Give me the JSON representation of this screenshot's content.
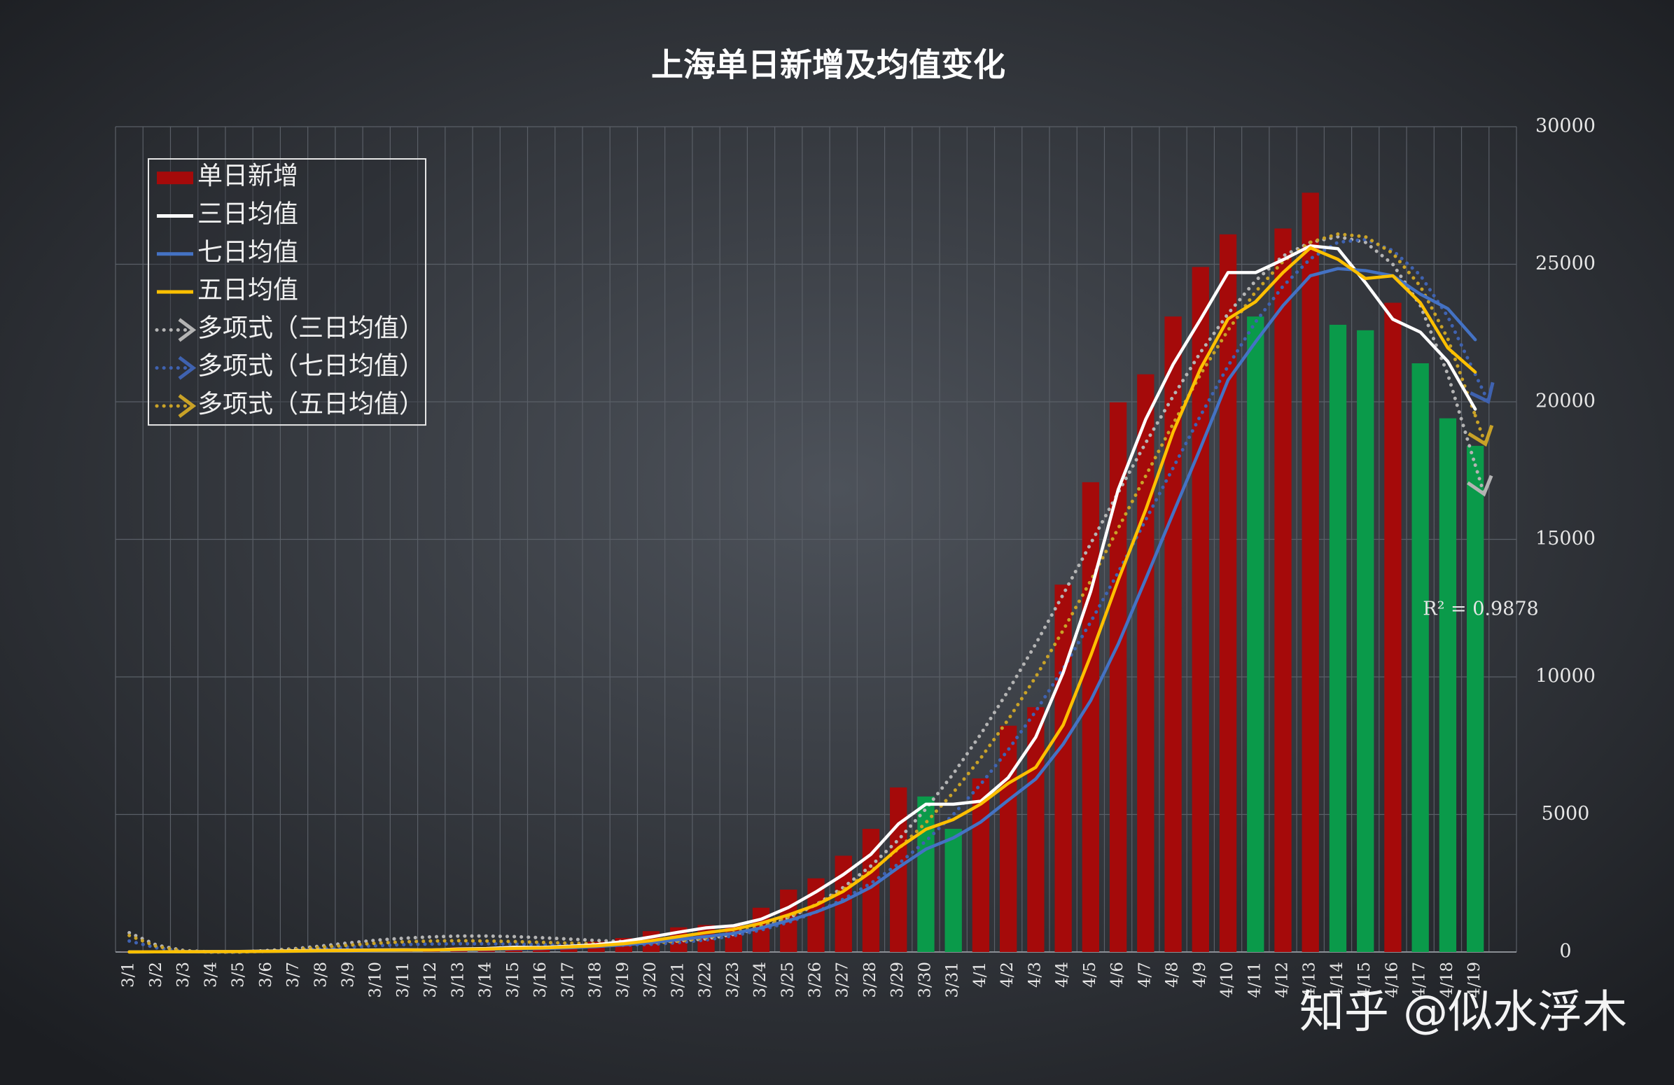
{
  "chart_data": {
    "type": "bar",
    "title": "上海单日新增及均值变化",
    "categories": [
      "3/1",
      "3/2",
      "3/3",
      "3/4",
      "3/5",
      "3/6",
      "3/7",
      "3/8",
      "3/9",
      "3/10",
      "3/11",
      "3/12",
      "3/13",
      "3/14",
      "3/15",
      "3/16",
      "3/17",
      "3/18",
      "3/19",
      "3/20",
      "3/21",
      "3/22",
      "3/23",
      "3/24",
      "3/25",
      "3/26",
      "3/27",
      "3/28",
      "3/29",
      "3/30",
      "3/31",
      "4/1",
      "4/2",
      "4/3",
      "4/4",
      "4/5",
      "4/6",
      "4/7",
      "4/8",
      "4/9",
      "4/10",
      "4/11",
      "4/12",
      "4/13",
      "4/14",
      "4/15",
      "4/16",
      "4/17",
      "4/18",
      "4/19"
    ],
    "series": [
      {
        "name": "单日新增",
        "type": "bar",
        "color": "#a50a0a",
        "values": [
          3,
          8,
          16,
          19,
          28,
          45,
          55,
          65,
          79,
          75,
          83,
          65,
          169,
          139,
          202,
          158,
          260,
          374,
          509,
          758,
          896,
          981,
          983,
          1609,
          2269,
          2678,
          3500,
          4477,
          5982,
          5653,
          4477,
          6311,
          8226,
          8900,
          13354,
          17077,
          19982,
          21000,
          23100,
          24900,
          26087,
          23100,
          26300,
          27600,
          22800,
          22600,
          23600,
          21400,
          19400,
          18400
        ],
        "colors": [
          "#a50a0a",
          "#a50a0a",
          "#a50a0a",
          "#a50a0a",
          "#a50a0a",
          "#a50a0a",
          "#a50a0a",
          "#a50a0a",
          "#a50a0a",
          "#a50a0a",
          "#a50a0a",
          "#a50a0a",
          "#a50a0a",
          "#a50a0a",
          "#a50a0a",
          "#a50a0a",
          "#a50a0a",
          "#a50a0a",
          "#a50a0a",
          "#a50a0a",
          "#a50a0a",
          "#a50a0a",
          "#a50a0a",
          "#a50a0a",
          "#a50a0a",
          "#a50a0a",
          "#a50a0a",
          "#a50a0a",
          "#a50a0a",
          "#0a9a4a",
          "#0a9a4a",
          "#a50a0a",
          "#a50a0a",
          "#a50a0a",
          "#a50a0a",
          "#a50a0a",
          "#a50a0a",
          "#a50a0a",
          "#a50a0a",
          "#a50a0a",
          "#a50a0a",
          "#0a9a4a",
          "#a50a0a",
          "#a50a0a",
          "#0a9a4a",
          "#0a9a4a",
          "#a50a0a",
          "#0a9a4a",
          "#0a9a4a",
          "#0a9a4a"
        ]
      },
      {
        "name": "三日均值",
        "type": "line",
        "color": "#ffffff",
        "values": [
          3,
          5.5,
          9,
          14,
          21,
          31,
          43,
          55,
          66,
          73,
          79,
          74,
          106,
          124,
          170,
          166,
          207,
          264,
          381,
          547,
          721,
          878,
          953,
          1191,
          1620,
          2185,
          2816,
          3552,
          4653,
          5371,
          5371,
          5480,
          6338,
          7812,
          10160,
          13110,
          16804,
          19353,
          21361,
          23000,
          24696,
          24696,
          25162,
          25667,
          25567,
          24333,
          23000,
          22533,
          21467,
          19733
        ]
      },
      {
        "name": "七日均值",
        "type": "line",
        "color": "#4472c4",
        "values": [
          3,
          5.5,
          9,
          11.5,
          14.8,
          19.8,
          24.9,
          33.7,
          43.9,
          52.3,
          61.4,
          66.7,
          84.4,
          96.4,
          116,
          127.3,
          153.7,
          195.3,
          258.7,
          342.9,
          451,
          562.3,
          680.1,
          872.9,
          1143.6,
          1453.4,
          1845.1,
          2356.7,
          3071.1,
          3738.3,
          4148,
          4725.4,
          5518,
          6289.4,
          7557.6,
          9142.6,
          11189.6,
          13550,
          15948.4,
          18330.4,
          20785.7,
          22178,
          23495.6,
          24583.9,
          24841,
          24769.6,
          24583.9,
          23914.3,
          23385.7,
          22257
        ]
      },
      {
        "name": "五日均值",
        "type": "line",
        "color": "#ffc000",
        "values": [
          3,
          5.5,
          9,
          11.5,
          14.8,
          23.2,
          32.6,
          42.4,
          54.4,
          63.8,
          71.4,
          73.4,
          94.2,
          106.2,
          131.6,
          146.6,
          185.6,
          226.6,
          300.6,
          411.8,
          559.4,
          703.6,
          825.4,
          1045.4,
          1347.6,
          1704,
          2207.8,
          2906.6,
          3781.2,
          4458,
          4817.8,
          5380,
          6129.8,
          6713.4,
          8253.6,
          10773.6,
          13507.8,
          16062.6,
          18902.6,
          21211.8,
          23013.8,
          23637.4,
          24697.4,
          25597.4,
          25177.4,
          24480,
          24580,
          23600,
          21960,
          21080
        ]
      },
      {
        "name": "多项式（三日均值）",
        "type": "trend",
        "color": "#b4b4b4",
        "values": [
          700,
          250,
          50,
          0,
          0,
          50,
          120,
          220,
          330,
          430,
          500,
          550,
          580,
          580,
          560,
          520,
          470,
          420,
          380,
          370,
          400,
          480,
          640,
          880,
          1240,
          1720,
          2350,
          3130,
          4080,
          5200,
          6480,
          7920,
          9500,
          11200,
          13000,
          14850,
          16700,
          18500,
          20200,
          21800,
          23200,
          24400,
          25300,
          25800,
          26000,
          25800,
          25000,
          23500,
          21000,
          17700
        ]
      },
      {
        "name": "多项式（七日均值）",
        "type": "trend",
        "color": "#3f62b0",
        "values": [
          400,
          150,
          20,
          0,
          0,
          20,
          60,
          120,
          180,
          230,
          270,
          290,
          300,
          300,
          290,
          270,
          250,
          240,
          250,
          280,
          340,
          440,
          590,
          800,
          1080,
          1450,
          1920,
          2500,
          3200,
          4030,
          5000,
          6100,
          7350,
          8750,
          10300,
          12000,
          13800,
          15700,
          17600,
          19500,
          21300,
          22900,
          24200,
          25200,
          25800,
          25900,
          25500,
          24600,
          23100,
          21000
        ]
      },
      {
        "name": "多项式（五日均值）",
        "type": "trend",
        "color": "#c9a227",
        "values": [
          600,
          200,
          30,
          0,
          0,
          30,
          90,
          170,
          250,
          320,
          370,
          400,
          410,
          400,
          380,
          350,
          320,
          300,
          300,
          330,
          400,
          520,
          700,
          950,
          1280,
          1720,
          2270,
          2940,
          3750,
          4700,
          5800,
          7050,
          8450,
          10000,
          11700,
          13500,
          15400,
          17300,
          19200,
          21000,
          22600,
          24000,
          25100,
          25800,
          26100,
          26000,
          25400,
          24200,
          22300,
          19500
        ]
      }
    ],
    "ylim": [
      0,
      30000
    ],
    "yticks": [
      0,
      5000,
      10000,
      15000,
      20000,
      25000,
      30000
    ],
    "y_axis_side": "right",
    "grid": true,
    "legend": "upper left",
    "annotation": "R² = 0.9878",
    "watermark": "知乎 @似水浮木"
  }
}
